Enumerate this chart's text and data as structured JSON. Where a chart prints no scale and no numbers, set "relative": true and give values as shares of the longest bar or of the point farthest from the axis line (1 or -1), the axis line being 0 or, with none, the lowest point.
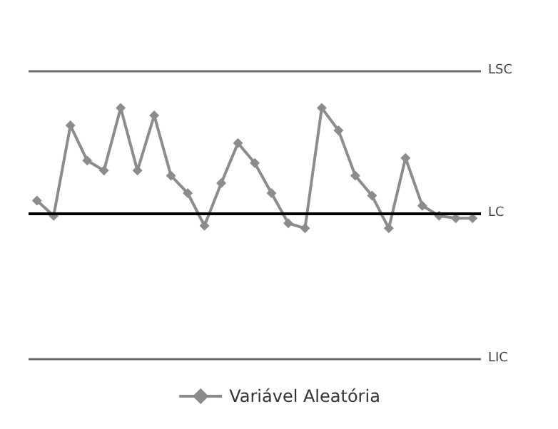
{
  "chart_data": {
    "type": "line",
    "relative": true,
    "categories": [
      null,
      null,
      null,
      null,
      null,
      null,
      null,
      null,
      null,
      null,
      null,
      null,
      null,
      null,
      null,
      null,
      null,
      null,
      null,
      null,
      null,
      null,
      null,
      null,
      null,
      null,
      null
    ],
    "series": [
      {
        "name": "Variável Aleatória",
        "color": "#8c8c8c",
        "values": [
          0.63,
          0.57,
          0.93,
          0.79,
          0.75,
          1,
          0.75,
          0.97,
          0.73,
          0.66,
          0.53,
          0.7,
          0.86,
          0.78,
          0.66,
          0.54,
          0.52,
          1.0,
          0.91,
          0.73,
          0.65,
          0.52,
          0.8,
          0.61,
          0.57,
          0.56,
          0.56
        ]
      }
    ],
    "ref_lines": [
      {
        "axis": "y",
        "value": 1.15,
        "label": "LSC",
        "color": "#6a6a6a"
      },
      {
        "axis": "y",
        "value": 0.58,
        "label": "LC",
        "color": "#000000"
      },
      {
        "axis": "y",
        "value": 0,
        "label": "LIC",
        "color": "#6a6a6a"
      }
    ],
    "marker": "diamond",
    "line_style": "solid",
    "legend": "bottom"
  }
}
